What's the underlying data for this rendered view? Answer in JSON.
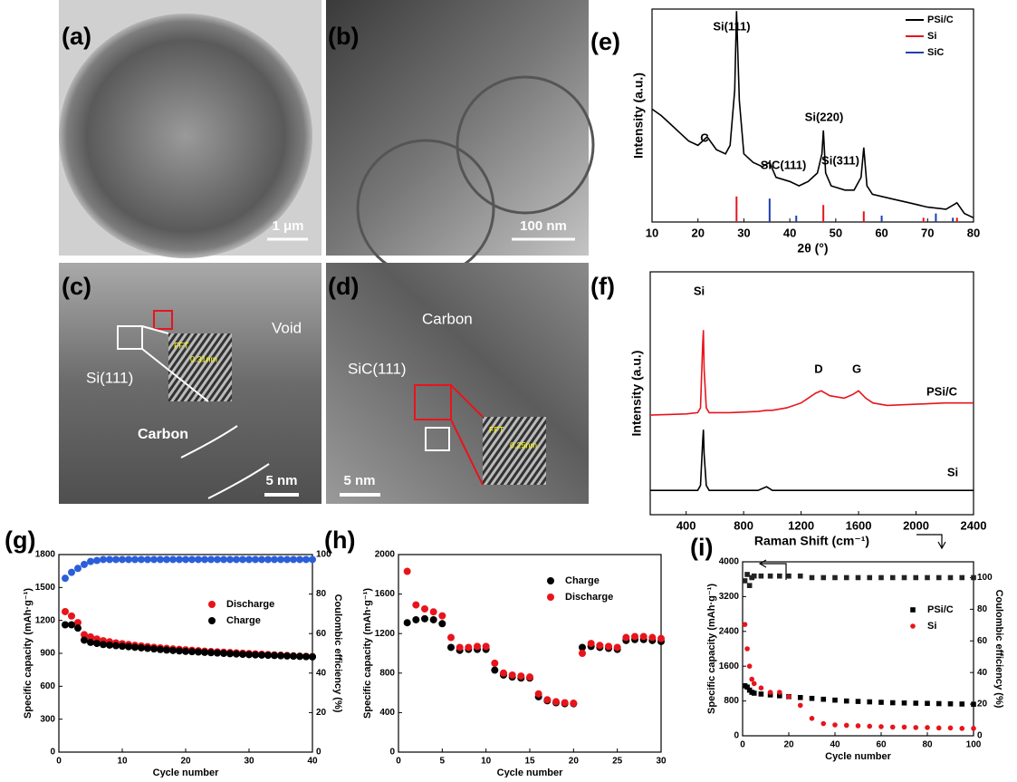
{
  "images": [
    {
      "label": "(a)",
      "scale_bar": "1 μm"
    },
    {
      "label": "(b)",
      "scale_bar": "100 nm"
    },
    {
      "label": "(c)",
      "scale_bar": "5 nm",
      "annotations": [
        "Void",
        "Si(111)",
        "Carbon",
        "FFT",
        "0.31nm"
      ]
    },
    {
      "label": "(d)",
      "scale_bar": "5 nm",
      "annotations": [
        "Carbon",
        "SiC(111)",
        "FFT",
        "0.25nm"
      ]
    }
  ],
  "chart_data": [
    {
      "type": "line",
      "label": "(e)",
      "xlabel": "2θ (°)",
      "ylabel": "Intensity (a.u.)",
      "xlim": [
        10,
        80
      ],
      "xticks": [
        10,
        20,
        30,
        40,
        50,
        60,
        70,
        80
      ],
      "ylim": [
        0,
        100
      ],
      "legend": "upper right",
      "annotations": [
        "Si(111)",
        "C",
        "SiC(111)",
        "Si(220)",
        "Si(311)"
      ],
      "x": [
        10,
        12,
        14,
        16,
        18,
        20,
        22,
        24,
        26,
        27,
        28,
        28.4,
        29,
        30,
        32,
        34,
        35.6,
        37,
        40,
        42,
        44,
        46,
        47,
        47.3,
        47.8,
        49,
        52,
        54,
        55.5,
        56.1,
        56.8,
        58,
        62,
        66,
        70,
        74,
        76.4,
        78,
        80
      ],
      "series": [
        {
          "name": "PSi/C",
          "color": "#000000",
          "values": [
            53,
            50,
            46,
            42,
            38,
            36,
            40,
            34,
            32,
            36,
            62,
            99,
            57,
            32,
            28,
            26,
            28,
            21,
            19,
            17,
            19,
            23,
            32,
            43,
            23,
            17,
            15,
            15,
            21,
            35,
            17,
            13,
            11,
            9,
            7,
            6,
            9,
            4,
            2
          ]
        },
        {
          "name": "Si",
          "color": "#e8141c",
          "mark": "stick",
          "x": [
            28.4,
            47.3,
            56.1,
            69.1,
            76.4
          ],
          "values": [
            12,
            8,
            5,
            2,
            2
          ]
        },
        {
          "name": "SiC",
          "color": "#1f3fa8",
          "mark": "stick",
          "x": [
            35.6,
            41.4,
            60,
            71.8,
            75.5
          ],
          "values": [
            11,
            3,
            3,
            4,
            2
          ]
        }
      ]
    },
    {
      "type": "line",
      "label": "(f)",
      "xlabel": "Raman Shift (cm⁻¹)",
      "ylabel": "Intensity (a.u.)",
      "xlim": [
        150,
        2400
      ],
      "xticks": [
        400,
        800,
        1200,
        1600,
        2000,
        2400
      ],
      "ylim": [
        0,
        100
      ],
      "legend": "inline",
      "annotations": [
        "Si",
        "D",
        "G"
      ],
      "x": [
        150,
        400,
        480,
        500,
        515,
        520,
        525,
        540,
        560,
        700,
        900,
        960,
        1000,
        1100,
        1200,
        1300,
        1340,
        1400,
        1500,
        1560,
        1600,
        1650,
        1700,
        1800,
        2000,
        2200,
        2400
      ],
      "series": [
        {
          "name": "PSi/C",
          "color": "#e8141c",
          "values": [
            41,
            41.5,
            42,
            44,
            70,
            76,
            60,
            44,
            42,
            42,
            42.5,
            43,
            43,
            44,
            46,
            50,
            51,
            49,
            48,
            49.5,
            51,
            48,
            46,
            45,
            45.5,
            46,
            46
          ]
        },
        {
          "name": "Si",
          "color": "#000000",
          "values": [
            10,
            10,
            10,
            12,
            30,
            35,
            25,
            12,
            10,
            10,
            10,
            11.5,
            10,
            10,
            10,
            10,
            10,
            10,
            10,
            10,
            10,
            10,
            10,
            10,
            10,
            10,
            10
          ]
        }
      ]
    },
    {
      "type": "scatter",
      "label": "(g)",
      "xlabel": "Cycle number",
      "ylabel": "Specific capacity (mAh·g⁻¹)",
      "y2label": "Coulombic efficiency (%)",
      "xlim": [
        0,
        40
      ],
      "xticks": [
        0,
        10,
        20,
        30,
        40
      ],
      "ylim": [
        0,
        1800
      ],
      "yticks": [
        0,
        300,
        600,
        900,
        1200,
        1500,
        1800
      ],
      "y2lim": [
        0,
        100
      ],
      "y2ticks": [
        0,
        20,
        40,
        60,
        80,
        100
      ],
      "legend": "center right",
      "x": [
        1,
        2,
        3,
        4,
        5,
        6,
        7,
        8,
        9,
        10,
        11,
        12,
        13,
        14,
        15,
        16,
        17,
        18,
        19,
        20,
        21,
        22,
        23,
        24,
        25,
        26,
        27,
        28,
        29,
        30,
        31,
        32,
        33,
        34,
        35,
        36,
        37,
        38,
        39,
        40
      ],
      "series": [
        {
          "name": "Discharge",
          "color": "#e8141c",
          "values": [
            1280,
            1240,
            1180,
            1070,
            1050,
            1030,
            1015,
            1005,
            995,
            988,
            980,
            973,
            967,
            961,
            955,
            950,
            945,
            940,
            936,
            932,
            928,
            924,
            920,
            916,
            913,
            910,
            907,
            904,
            901,
            898,
            895,
            892,
            889,
            886,
            883,
            880,
            877,
            874,
            872,
            870
          ]
        },
        {
          "name": "Charge",
          "color": "#000000",
          "values": [
            1160,
            1160,
            1130,
            1020,
            1000,
            990,
            980,
            975,
            970,
            965,
            960,
            955,
            950,
            945,
            940,
            935,
            930,
            926,
            922,
            918,
            915,
            912,
            909,
            906,
            903,
            900,
            897,
            894,
            891,
            888,
            886,
            884,
            882,
            880,
            878,
            876,
            874,
            872,
            870,
            868
          ]
        },
        {
          "color": "#2b5fd9",
          "axis": "y2",
          "values": [
            88,
            91,
            93,
            95,
            96.5,
            97,
            97.5,
            97.5,
            97.5,
            97.5,
            97.5,
            97.5,
            97.5,
            97.5,
            97.5,
            97.5,
            97.5,
            97.5,
            97.5,
            97.5,
            97.5,
            97.5,
            97.5,
            97.5,
            97.5,
            97.5,
            97.5,
            97.5,
            97.5,
            97.5,
            97.5,
            97.5,
            97.5,
            97.5,
            97.5,
            97.5,
            97.5,
            97.5,
            97.5,
            97.5
          ]
        }
      ]
    },
    {
      "type": "scatter",
      "label": "(h)",
      "xlabel": "Cycle number",
      "ylabel": "Specific capacity (mAh·g⁻¹)",
      "xlim": [
        0,
        30
      ],
      "xticks": [
        0,
        5,
        10,
        15,
        20,
        25,
        30
      ],
      "ylim": [
        0,
        2000
      ],
      "yticks": [
        0,
        400,
        800,
        1200,
        1600,
        2000
      ],
      "legend": "upper right",
      "x": [
        1,
        2,
        3,
        4,
        5,
        6,
        7,
        8,
        9,
        10,
        11,
        12,
        13,
        14,
        15,
        16,
        17,
        18,
        19,
        20,
        21,
        22,
        23,
        24,
        25,
        26,
        27,
        28,
        29,
        30
      ],
      "series": [
        {
          "name": "Charge",
          "color": "#000000",
          "values": [
            1310,
            1340,
            1350,
            1340,
            1300,
            1060,
            1030,
            1040,
            1040,
            1040,
            830,
            780,
            760,
            750,
            750,
            560,
            520,
            500,
            490,
            490,
            1060,
            1070,
            1060,
            1050,
            1040,
            1130,
            1140,
            1140,
            1130,
            1120
          ]
        },
        {
          "name": "Discharge",
          "color": "#e8141c",
          "values": [
            1830,
            1490,
            1450,
            1420,
            1380,
            1160,
            1060,
            1060,
            1070,
            1070,
            900,
            800,
            780,
            770,
            760,
            590,
            530,
            510,
            500,
            495,
            1000,
            1100,
            1080,
            1070,
            1060,
            1160,
            1170,
            1170,
            1160,
            1150
          ]
        }
      ]
    },
    {
      "type": "scatter",
      "label": "(i)",
      "xlabel": "Cycle number",
      "ylabel": "Specific capacity (mAh·g⁻¹)",
      "y2label": "Coulombic efficiency (%)",
      "xlim": [
        0,
        100
      ],
      "xticks": [
        0,
        20,
        40,
        60,
        80,
        100
      ],
      "ylim": [
        0,
        4000
      ],
      "yticks": [
        0,
        800,
        1600,
        2400,
        3200,
        4000
      ],
      "y2lim": [
        0,
        110
      ],
      "y2ticks": [
        0,
        20,
        40,
        60,
        80,
        100
      ],
      "legend": "center right",
      "x": [
        1,
        2,
        3,
        4,
        5,
        8,
        12,
        16,
        20,
        25,
        30,
        35,
        40,
        45,
        50,
        55,
        60,
        65,
        70,
        75,
        80,
        85,
        90,
        95,
        100
      ],
      "series": [
        {
          "name": "PSi/C",
          "color": "#000000",
          "marker": "square",
          "values": [
            1150,
            1120,
            1050,
            1000,
            980,
            960,
            940,
            920,
            900,
            880,
            860,
            840,
            820,
            800,
            790,
            780,
            770,
            760,
            755,
            750,
            745,
            740,
            735,
            730,
            725
          ]
        },
        {
          "name": "Si",
          "color": "#e8141c",
          "values": [
            2560,
            2000,
            1600,
            1300,
            1200,
            1100,
            1000,
            1000,
            900,
            700,
            400,
            280,
            250,
            240,
            230,
            220,
            210,
            200,
            200,
            190,
            190,
            180,
            180,
            170,
            170
          ]
        },
        {
          "color": "#222222",
          "marker": "square",
          "axis": "y2",
          "values": [
            98,
            102,
            95,
            100,
            101,
            101,
            101,
            101,
            101,
            101,
            100,
            100,
            100,
            100,
            100,
            100,
            100,
            100,
            100,
            100,
            100,
            100,
            100,
            100,
            100
          ]
        }
      ]
    }
  ]
}
